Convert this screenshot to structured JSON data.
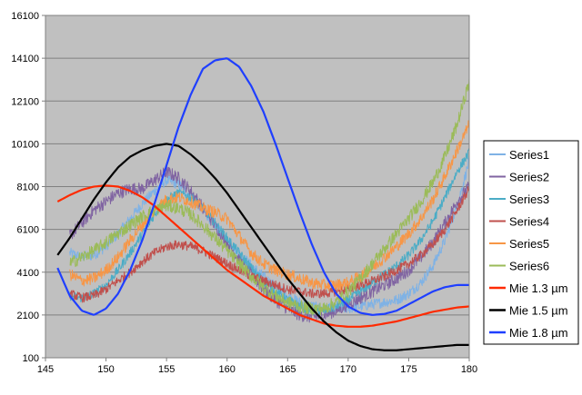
{
  "chart_data": {
    "type": "line",
    "title": "",
    "xlabel": "",
    "ylabel": "",
    "xlim": [
      145,
      180
    ],
    "ylim": [
      100,
      16100
    ],
    "x_ticks": [
      145,
      150,
      155,
      160,
      165,
      170,
      175,
      180
    ],
    "y_ticks": [
      100,
      2100,
      4100,
      6100,
      8100,
      10100,
      12100,
      14100,
      16100
    ],
    "grid": "horizontal",
    "legend_position": "right",
    "plot_background": "#c0c0c0",
    "series": [
      {
        "name": "Series1",
        "color": "#7fb2e5",
        "noisy": true,
        "noise": 250,
        "x": [
          147,
          148,
          149,
          150,
          151,
          152,
          153,
          154,
          155,
          156,
          157,
          158,
          159,
          160,
          161,
          162,
          163,
          164,
          165,
          166,
          167,
          168,
          169,
          170,
          171,
          172,
          173,
          174,
          175,
          176,
          177,
          178,
          179,
          180
        ],
        "y": [
          5000,
          4800,
          4900,
          5300,
          5900,
          6600,
          7300,
          7900,
          8400,
          8200,
          7700,
          7000,
          6300,
          5600,
          5000,
          4400,
          3900,
          3400,
          3000,
          2700,
          2500,
          2400,
          2400,
          2400,
          2500,
          2600,
          2700,
          2800,
          3100,
          3600,
          4400,
          5600,
          7200,
          9300
        ]
      },
      {
        "name": "Series2",
        "color": "#8064a2",
        "noisy": true,
        "noise": 300,
        "x": [
          147,
          148,
          149,
          150,
          151,
          152,
          153,
          154,
          155,
          156,
          157,
          158,
          159,
          160,
          161,
          162,
          163,
          164,
          165,
          166,
          167,
          168,
          169,
          170,
          171,
          172,
          173,
          174,
          175,
          176,
          177,
          178,
          179,
          180
        ],
        "y": [
          5800,
          6400,
          7000,
          7400,
          7800,
          8000,
          8000,
          8400,
          8800,
          8500,
          7900,
          7100,
          6300,
          5500,
          4700,
          4000,
          3300,
          2800,
          2400,
          2100,
          2000,
          2100,
          2300,
          2600,
          2900,
          3200,
          3500,
          3800,
          4200,
          4800,
          5500,
          6400,
          7400,
          8100
        ]
      },
      {
        "name": "Series3",
        "color": "#4bacc6",
        "noisy": true,
        "noise": 220,
        "x": [
          147,
          148,
          149,
          150,
          151,
          152,
          153,
          154,
          155,
          156,
          157,
          158,
          159,
          160,
          161,
          162,
          163,
          164,
          165,
          166,
          167,
          168,
          169,
          170,
          171,
          172,
          173,
          174,
          175,
          176,
          177,
          178,
          179,
          180
        ],
        "y": [
          3000,
          2900,
          3100,
          3500,
          4200,
          5000,
          5900,
          6800,
          7500,
          7800,
          7600,
          7100,
          6400,
          5700,
          5000,
          4300,
          3700,
          3200,
          2800,
          2500,
          2300,
          2300,
          2500,
          2800,
          3200,
          3600,
          4000,
          4400,
          4900,
          5600,
          6500,
          7600,
          8800,
          9700
        ]
      },
      {
        "name": "Series4",
        "color": "#c0504d",
        "noisy": true,
        "noise": 220,
        "x": [
          147,
          148,
          149,
          150,
          151,
          152,
          153,
          154,
          155,
          156,
          157,
          158,
          159,
          160,
          161,
          162,
          163,
          164,
          165,
          166,
          167,
          168,
          169,
          170,
          171,
          172,
          173,
          174,
          175,
          176,
          177,
          178,
          179,
          180
        ],
        "y": [
          3100,
          2900,
          3000,
          3300,
          3700,
          4100,
          4600,
          5000,
          5300,
          5400,
          5300,
          5100,
          4800,
          4500,
          4200,
          3900,
          3700,
          3500,
          3300,
          3200,
          3100,
          3100,
          3200,
          3300,
          3500,
          3700,
          3900,
          4200,
          4500,
          4900,
          5400,
          6100,
          7000,
          8000
        ]
      },
      {
        "name": "Series5",
        "color": "#f79646",
        "noisy": true,
        "noise": 280,
        "x": [
          147,
          148,
          149,
          150,
          151,
          152,
          153,
          154,
          155,
          156,
          157,
          158,
          159,
          160,
          161,
          162,
          163,
          164,
          165,
          166,
          167,
          168,
          169,
          170,
          171,
          172,
          173,
          174,
          175,
          176,
          177,
          178,
          179,
          180
        ],
        "y": [
          4000,
          3700,
          3800,
          4200,
          4800,
          5600,
          6300,
          7000,
          7500,
          7600,
          7400,
          7100,
          6900,
          6600,
          5800,
          5000,
          4500,
          4200,
          4000,
          3800,
          3600,
          3500,
          3500,
          3600,
          3900,
          4300,
          4800,
          5300,
          5900,
          6600,
          7500,
          8600,
          9800,
          11000
        ]
      },
      {
        "name": "Series6",
        "color": "#9bbb59",
        "noisy": true,
        "noise": 300,
        "x": [
          147,
          148,
          149,
          150,
          151,
          152,
          153,
          154,
          155,
          156,
          157,
          158,
          159,
          160,
          161,
          162,
          163,
          164,
          165,
          166,
          167,
          168,
          169,
          170,
          171,
          172,
          173,
          174,
          175,
          176,
          177,
          178,
          179,
          180
        ],
        "y": [
          4500,
          4800,
          5100,
          5500,
          5900,
          6300,
          6700,
          7000,
          7200,
          7100,
          6800,
          6300,
          5700,
          5100,
          4500,
          3900,
          3400,
          3000,
          2700,
          2500,
          2400,
          2400,
          2700,
          3200,
          3800,
          4500,
          5200,
          5900,
          6600,
          7400,
          8300,
          9500,
          11000,
          13000
        ]
      },
      {
        "name": "Mie 1.3 µm",
        "color": "#ff2a00",
        "noisy": false,
        "x": [
          146,
          147,
          148,
          149,
          150,
          151,
          152,
          153,
          154,
          155,
          156,
          157,
          158,
          159,
          160,
          161,
          162,
          163,
          164,
          165,
          166,
          167,
          168,
          169,
          170,
          171,
          172,
          173,
          174,
          175,
          176,
          177,
          178,
          179,
          180
        ],
        "y": [
          7400,
          7700,
          7950,
          8100,
          8150,
          8100,
          7900,
          7600,
          7200,
          6700,
          6200,
          5700,
          5200,
          4700,
          4200,
          3800,
          3400,
          3000,
          2700,
          2400,
          2100,
          1900,
          1700,
          1600,
          1550,
          1550,
          1600,
          1700,
          1800,
          1950,
          2100,
          2250,
          2350,
          2450,
          2500
        ]
      },
      {
        "name": "Mie 1.5 µm",
        "color": "#000000",
        "noisy": false,
        "x": [
          146,
          147,
          148,
          149,
          150,
          151,
          152,
          153,
          154,
          155,
          156,
          157,
          158,
          159,
          160,
          161,
          162,
          163,
          164,
          165,
          166,
          167,
          168,
          169,
          170,
          171,
          172,
          173,
          174,
          175,
          176,
          177,
          178,
          179,
          180
        ],
        "y": [
          4900,
          5700,
          6600,
          7500,
          8300,
          9000,
          9500,
          9800,
          10000,
          10100,
          10000,
          9600,
          9100,
          8500,
          7800,
          7000,
          6200,
          5400,
          4600,
          3800,
          3100,
          2400,
          1800,
          1300,
          900,
          650,
          500,
          450,
          450,
          500,
          550,
          600,
          650,
          700,
          700
        ]
      },
      {
        "name": "Mie 1.8 µm",
        "color": "#1f3fff",
        "noisy": false,
        "x": [
          146,
          147,
          148,
          149,
          150,
          151,
          152,
          153,
          154,
          155,
          156,
          157,
          158,
          159,
          160,
          161,
          162,
          163,
          164,
          165,
          166,
          167,
          168,
          169,
          170,
          171,
          172,
          173,
          174,
          175,
          176,
          177,
          178,
          179,
          180
        ],
        "y": [
          4300,
          3000,
          2300,
          2100,
          2400,
          3100,
          4200,
          5600,
          7300,
          9100,
          10900,
          12400,
          13600,
          14000,
          14100,
          13700,
          12800,
          11600,
          10100,
          8500,
          6900,
          5400,
          4100,
          3100,
          2500,
          2200,
          2100,
          2150,
          2300,
          2600,
          2900,
          3200,
          3400,
          3500,
          3500
        ]
      }
    ]
  }
}
